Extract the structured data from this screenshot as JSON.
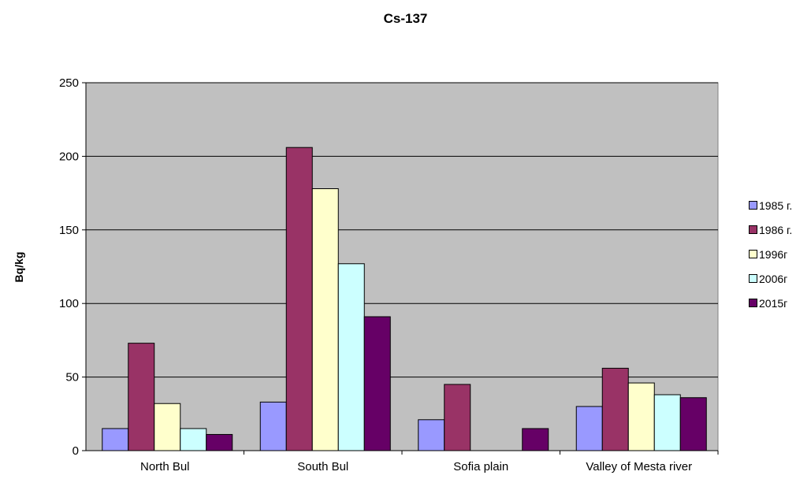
{
  "chart_data": {
    "type": "bar",
    "title": "Cs-137",
    "xlabel": "",
    "ylabel": "Bq/kg",
    "ylim": [
      0,
      250
    ],
    "yticks": [
      0,
      50,
      100,
      150,
      200,
      250
    ],
    "grid": true,
    "legend_position": "right",
    "categories": [
      "North Bul",
      "South Bul",
      "Sofia plain",
      "Valley of Mesta river"
    ],
    "series": [
      {
        "name": "1985 г.",
        "color": "#9999ff",
        "values": [
          15,
          33,
          21,
          30
        ]
      },
      {
        "name": "1986 г.",
        "color": "#993366",
        "values": [
          73,
          206,
          45,
          56
        ]
      },
      {
        "name": "1996г",
        "color": "#ffffcc",
        "values": [
          32,
          178,
          null,
          46
        ]
      },
      {
        "name": "2006г",
        "color": "#ccffff",
        "values": [
          15,
          127,
          null,
          38
        ]
      },
      {
        "name": "2015г",
        "color": "#660066",
        "values": [
          11,
          91,
          15,
          36
        ]
      }
    ],
    "plot_background": "#c0c0c0"
  }
}
